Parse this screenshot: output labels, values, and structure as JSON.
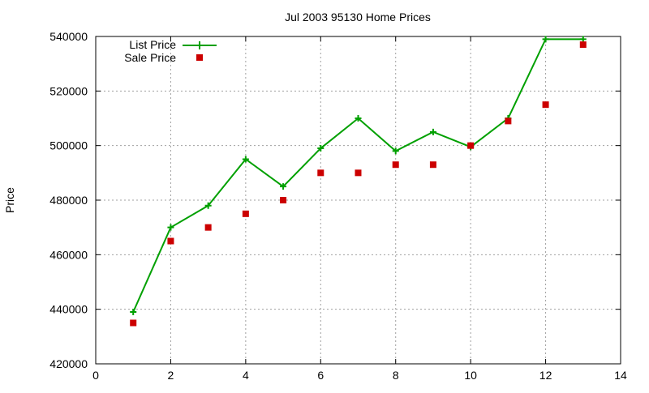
{
  "chart_data": {
    "type": "line",
    "title": "Jul 2003 95130 Home Prices",
    "xlabel": "",
    "ylabel": "Price",
    "xlim": [
      0,
      14
    ],
    "ylim": [
      420000,
      540000
    ],
    "x_ticks": [
      "0",
      "2",
      "4",
      "6",
      "8",
      "10",
      "12",
      "14"
    ],
    "y_ticks": [
      "420000",
      "440000",
      "460000",
      "480000",
      "500000",
      "520000",
      "540000"
    ],
    "grid": true,
    "legend_position": "top-left",
    "series": [
      {
        "name": "List Price",
        "style": "line-with-plus-markers",
        "color": "#00a000",
        "x": [
          1,
          2,
          3,
          4,
          5,
          6,
          7,
          8,
          9,
          10,
          11,
          12,
          13
        ],
        "values": [
          439000,
          470000,
          478000,
          495000,
          485000,
          499000,
          510000,
          498000,
          505000,
          499500,
          510000,
          539000,
          539000
        ]
      },
      {
        "name": "Sale Price",
        "style": "square-markers",
        "color": "#cc0000",
        "x": [
          1,
          2,
          3,
          4,
          5,
          6,
          7,
          8,
          9,
          10,
          11,
          12,
          13
        ],
        "values": [
          435000,
          465000,
          470000,
          475000,
          480000,
          490000,
          490000,
          493000,
          493000,
          500000,
          509000,
          515000,
          537000
        ]
      }
    ]
  }
}
